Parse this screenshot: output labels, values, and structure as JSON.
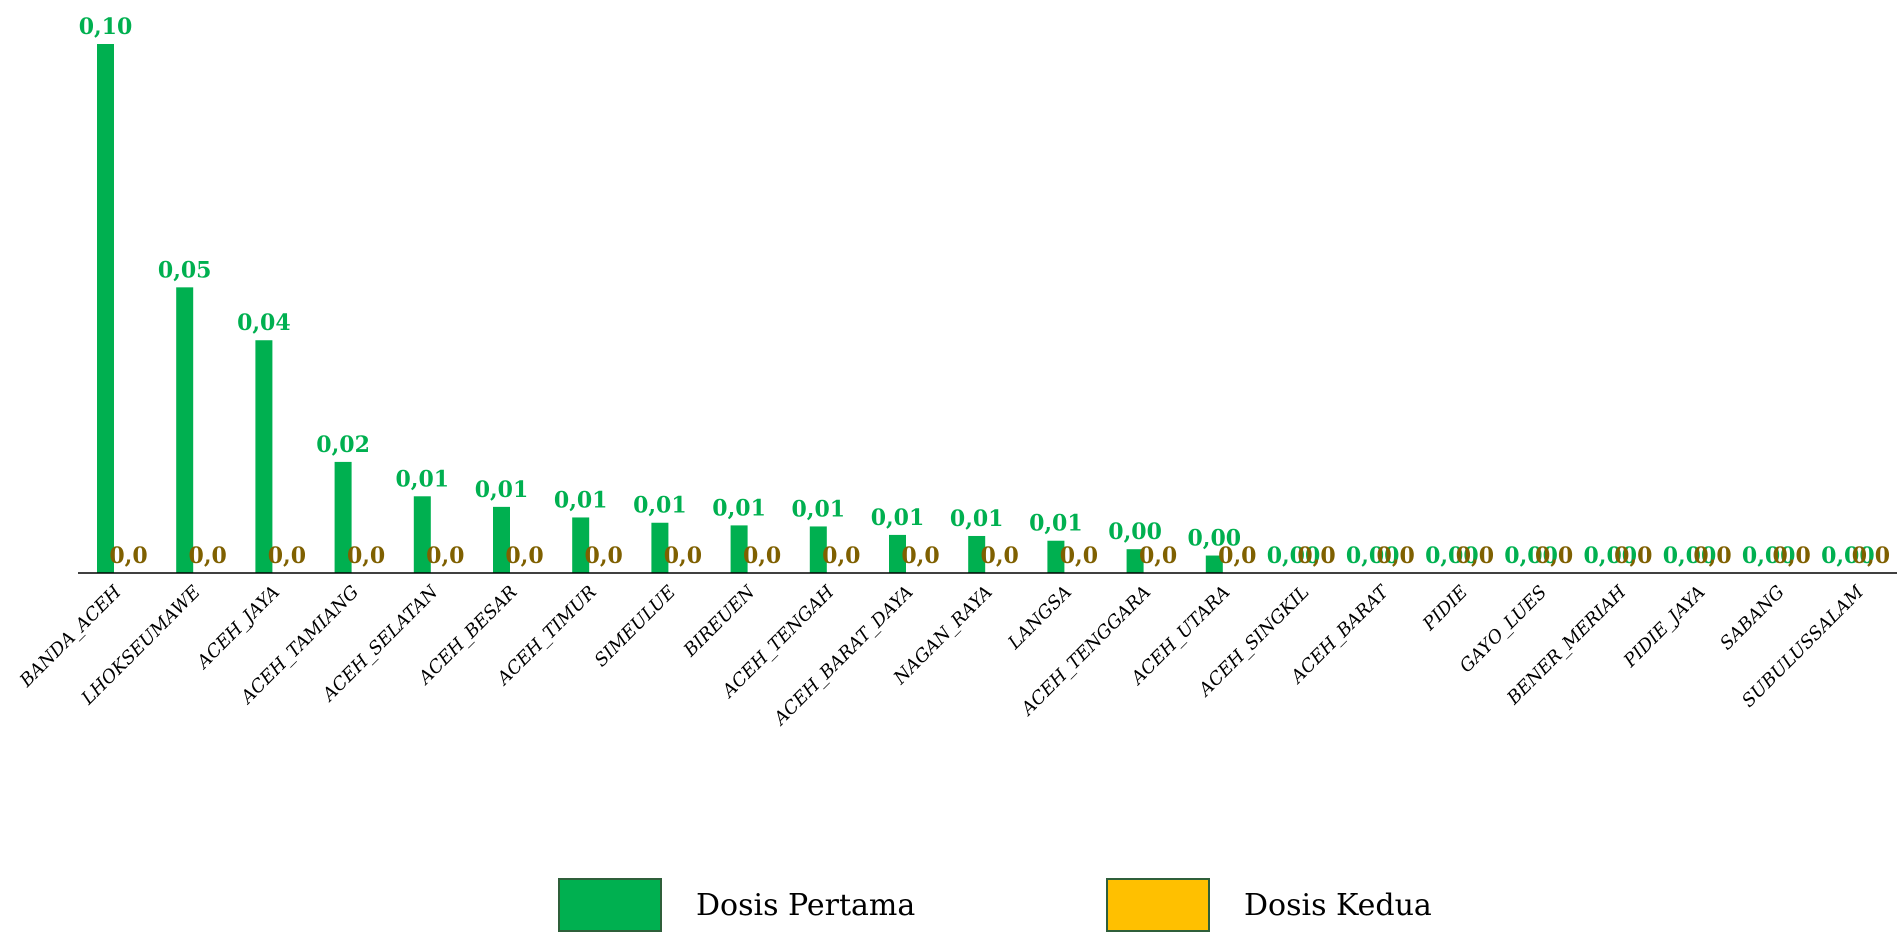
{
  "chart_data": {
    "type": "bar",
    "title": "",
    "xlabel": "",
    "ylabel": "",
    "ylim": [
      0,
      0.1
    ],
    "grid": false,
    "legend_position": "bottom",
    "categories": [
      "BANDA_ACEH",
      "LHOKSEUMAWE",
      "ACEH_JAYA",
      "ACEH_TAMIANG",
      "ACEH_SELATAN",
      "ACEH_BESAR",
      "ACEH_TIMUR",
      "SIMEULUE",
      "BIREUEN",
      "ACEH_TENGAH",
      "ACEH_BARAT_DAYA",
      "NAGAN_RAYA",
      "LANGSA",
      "ACEH_TENGGARA",
      "ACEH_UTARA",
      "ACEH_SINGKIL",
      "ACEH_BARAT",
      "PIDIE",
      "GAYO_LUES",
      "BENER_MERIAH",
      "PIDIE_JAYA",
      "SABANG",
      "SUBULUSSALAM"
    ],
    "series": [
      {
        "name": "Dosis Pertama",
        "color": "#00b050",
        "values": [
          0.1,
          0.054,
          0.044,
          0.021,
          0.0145,
          0.0125,
          0.0105,
          0.0095,
          0.009,
          0.0088,
          0.0072,
          0.007,
          0.0061,
          0.0045,
          0.0033,
          0,
          0,
          0,
          0,
          0,
          0,
          0,
          0
        ],
        "labels": [
          "0,10",
          "0,05",
          "0,04",
          "0,02",
          "0,01",
          "0,01",
          "0,01",
          "0,01",
          "0,01",
          "0,01",
          "0,01",
          "0,01",
          "0,01",
          "0,00",
          "0,00",
          "0,00",
          "0,00",
          "0,00",
          "0,00",
          "0,00",
          "0,00",
          "0,00",
          "0,00"
        ]
      },
      {
        "name": "Dosis Kedua",
        "color": "#ffc000",
        "label_color": "#7f6000",
        "values": [
          0,
          0,
          0,
          0,
          0,
          0,
          0,
          0,
          0,
          0,
          0,
          0,
          0,
          0,
          0,
          0,
          0,
          0,
          0,
          0,
          0,
          0,
          0
        ],
        "labels": [
          "0,0",
          "0,0",
          "0,0",
          "0,0",
          "0,0",
          "0,0",
          "0,0",
          "0,0",
          "0,0",
          "0,0",
          "0,0",
          "0,0",
          "0,0",
          "0,0",
          "0,0",
          "0,0",
          "0,0",
          "0,0",
          "0,0",
          "0,0",
          "0,0",
          "0,0",
          "0,0"
        ]
      }
    ]
  }
}
